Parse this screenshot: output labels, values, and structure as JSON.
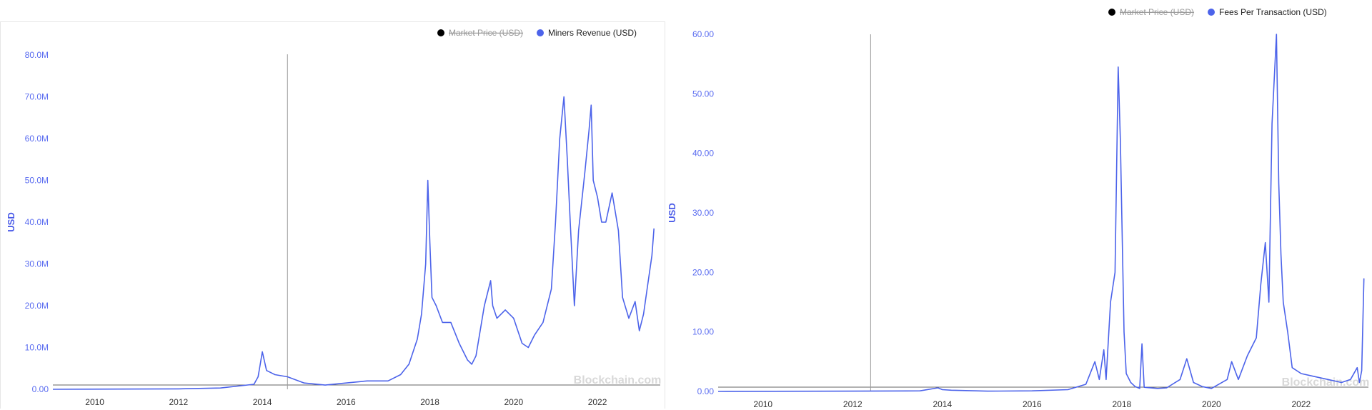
{
  "colors": {
    "series": "#4c63ea",
    "legend_off": "#000000",
    "axis_text": "#5a6cf0",
    "marker_line": "#9a9a9a"
  },
  "watermark": "Blockchain.com",
  "chart_data": [
    {
      "type": "line",
      "xlabel": "",
      "ylabel": "USD",
      "legend": [
        {
          "label": "Market Price (USD)",
          "active": false,
          "color": "#000000"
        },
        {
          "label": "Miners Revenue (USD)",
          "active": true,
          "color": "#4c63ea"
        }
      ],
      "legend_position": "top-right",
      "xlim": [
        2009.0,
        2023.5
      ],
      "ylim": [
        0,
        80000000
      ],
      "x_ticks": [
        "2010",
        "2012",
        "2014",
        "2016",
        "2018",
        "2020",
        "2022"
      ],
      "y_ticks": [
        "0.00",
        "10.0M",
        "20.0M",
        "30.0M",
        "40.0M",
        "50.0M",
        "60.0M",
        "70.0M",
        "80.0M"
      ],
      "marker_x": 2014.6,
      "series": [
        {
          "name": "Miners Revenue (USD)",
          "x": [
            2009.0,
            2012.0,
            2013.0,
            2013.8,
            2013.9,
            2013.95,
            2014.0,
            2014.1,
            2014.3,
            2014.6,
            2015.0,
            2015.5,
            2016.0,
            2016.5,
            2017.0,
            2017.3,
            2017.5,
            2017.7,
            2017.8,
            2017.9,
            2017.95,
            2018.0,
            2018.05,
            2018.15,
            2018.3,
            2018.5,
            2018.7,
            2018.9,
            2019.0,
            2019.1,
            2019.3,
            2019.45,
            2019.5,
            2019.6,
            2019.8,
            2020.0,
            2020.2,
            2020.35,
            2020.5,
            2020.7,
            2020.9,
            2021.0,
            2021.1,
            2021.2,
            2021.28,
            2021.35,
            2021.45,
            2021.55,
            2021.7,
            2021.8,
            2021.85,
            2021.9,
            2022.0,
            2022.1,
            2022.2,
            2022.35,
            2022.5,
            2022.6,
            2022.75,
            2022.9,
            2023.0,
            2023.1,
            2023.2,
            2023.3,
            2023.35
          ],
          "values": [
            0,
            100000,
            300000,
            1200000,
            3000000,
            6000000,
            9000000,
            4500000,
            3500000,
            3000000,
            1500000,
            1000000,
            1500000,
            2000000,
            2000000,
            3500000,
            6000000,
            12000000,
            18000000,
            30000000,
            50000000,
            35000000,
            22000000,
            20000000,
            16000000,
            16000000,
            11000000,
            7000000,
            6000000,
            8000000,
            20000000,
            26000000,
            20000000,
            17000000,
            19000000,
            17000000,
            11000000,
            10000000,
            13000000,
            16000000,
            24000000,
            40000000,
            60000000,
            70000000,
            55000000,
            40000000,
            20000000,
            38000000,
            52000000,
            62000000,
            68000000,
            50000000,
            46000000,
            40000000,
            40000000,
            47000000,
            38000000,
            22000000,
            17000000,
            21000000,
            14000000,
            18000000,
            25000000,
            32000000,
            38500000
          ]
        }
      ]
    },
    {
      "type": "line",
      "xlabel": "",
      "ylabel": "USD",
      "legend": [
        {
          "label": "Market Price (USD)",
          "active": false,
          "color": "#000000"
        },
        {
          "label": "Fees Per Transaction (USD)",
          "active": true,
          "color": "#4c63ea"
        }
      ],
      "legend_position": "top-right",
      "xlim": [
        2009.0,
        2023.5
      ],
      "ylim": [
        0,
        60
      ],
      "x_ticks": [
        "2010",
        "2012",
        "2014",
        "2016",
        "2018",
        "2020",
        "2022"
      ],
      "y_ticks": [
        "0.00",
        "10.00",
        "20.00",
        "30.00",
        "40.00",
        "50.00",
        "60.00"
      ],
      "marker_x": 2012.4,
      "series": [
        {
          "name": "Fees Per Transaction (USD)",
          "x": [
            2009.0,
            2012.0,
            2013.5,
            2013.9,
            2014.0,
            2014.2,
            2015.0,
            2016.0,
            2016.8,
            2017.2,
            2017.4,
            2017.5,
            2017.6,
            2017.65,
            2017.75,
            2017.85,
            2017.92,
            2017.97,
            2018.0,
            2018.05,
            2018.1,
            2018.2,
            2018.3,
            2018.4,
            2018.45,
            2018.5,
            2018.8,
            2019.0,
            2019.3,
            2019.45,
            2019.6,
            2019.8,
            2020.0,
            2020.35,
            2020.45,
            2020.6,
            2020.8,
            2021.0,
            2021.1,
            2021.2,
            2021.28,
            2021.35,
            2021.45,
            2021.5,
            2021.55,
            2021.6,
            2021.7,
            2021.8,
            2022.0,
            2022.3,
            2022.6,
            2022.9,
            2023.1,
            2023.25,
            2023.3,
            2023.35,
            2023.4
          ],
          "values": [
            0,
            0.05,
            0.1,
            0.6,
            0.3,
            0.2,
            0.05,
            0.1,
            0.3,
            1.2,
            5,
            2,
            7,
            2,
            15,
            20,
            54.5,
            42,
            30,
            10,
            3,
            1.5,
            0.8,
            0.5,
            8,
            0.7,
            0.5,
            0.6,
            2,
            5.5,
            1.5,
            0.8,
            0.5,
            2,
            5,
            2,
            6,
            9,
            18,
            25,
            15,
            45,
            60,
            35,
            23,
            15,
            10,
            4,
            3,
            2.5,
            2,
            1.5,
            2,
            4,
            1.5,
            3.5,
            19
          ]
        }
      ]
    }
  ]
}
